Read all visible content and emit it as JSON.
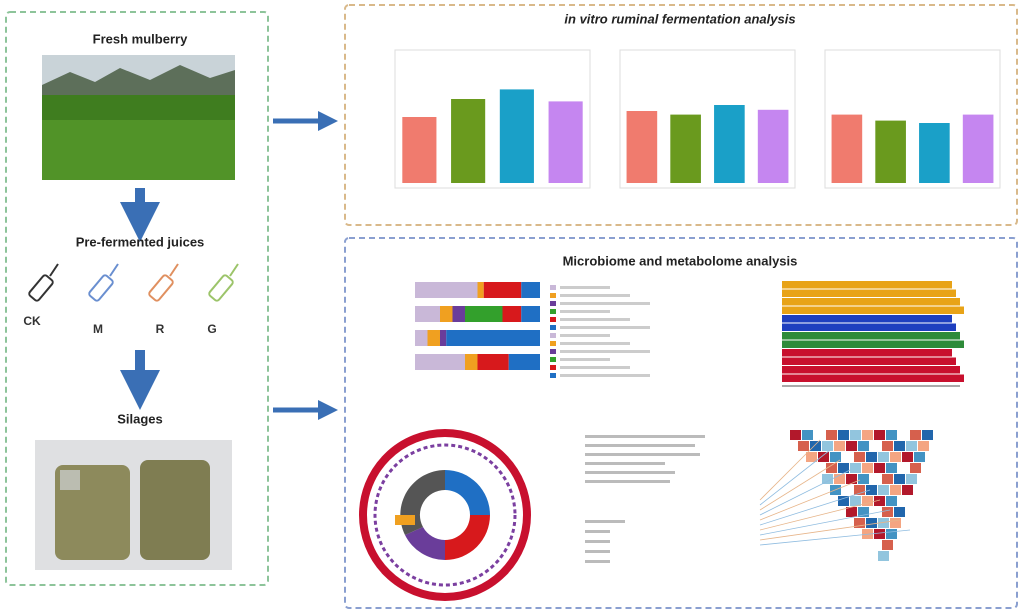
{
  "left_panel": {
    "title": "Fresh mulberry",
    "step2": "Pre-fermented juices",
    "juices": [
      "CK",
      "M",
      "R",
      "G"
    ],
    "step3": "Silages"
  },
  "top_panel": {
    "title": "in vitro ruminal fermentation analysis"
  },
  "bottom_panel": {
    "title": "Microbiome and metabolome analysis"
  }
}
